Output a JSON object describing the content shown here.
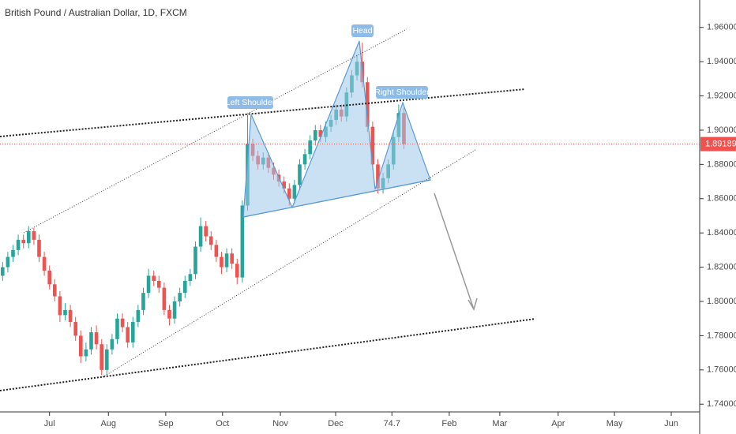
{
  "chart_data": {
    "type": "candlestick",
    "title": "British Pound / Australian Dollar, 1D, FXCM",
    "up_color": "#26a69a",
    "down_color": "#ef5350",
    "ohlc": [
      [
        1.815,
        1.823,
        1.812,
        1.82
      ],
      [
        1.82,
        1.829,
        1.817,
        1.826
      ],
      [
        1.826,
        1.833,
        1.823,
        1.83
      ],
      [
        1.83,
        1.839,
        1.827,
        1.836
      ],
      [
        1.836,
        1.839,
        1.831,
        1.834
      ],
      [
        1.834,
        1.844,
        1.831,
        1.841
      ],
      [
        1.841,
        1.843,
        1.833,
        1.836
      ],
      [
        1.836,
        1.839,
        1.823,
        1.826
      ],
      [
        1.826,
        1.829,
        1.815,
        1.818
      ],
      [
        1.818,
        1.821,
        1.807,
        1.81
      ],
      [
        1.81,
        1.813,
        1.8,
        1.803
      ],
      [
        1.803,
        1.806,
        1.788,
        1.792
      ],
      [
        1.792,
        1.799,
        1.789,
        1.795
      ],
      [
        1.795,
        1.798,
        1.785,
        1.788
      ],
      [
        1.788,
        1.791,
        1.777,
        1.78
      ],
      [
        1.78,
        1.783,
        1.764,
        1.768
      ],
      [
        1.768,
        1.776,
        1.765,
        1.772
      ],
      [
        1.772,
        1.785,
        1.769,
        1.782
      ],
      [
        1.782,
        1.786,
        1.772,
        1.775
      ],
      [
        1.775,
        1.778,
        1.757,
        1.76
      ],
      [
        1.76,
        1.775,
        1.757,
        1.772
      ],
      [
        1.772,
        1.781,
        1.769,
        1.778
      ],
      [
        1.778,
        1.793,
        1.775,
        1.79
      ],
      [
        1.79,
        1.793,
        1.782,
        1.785
      ],
      [
        1.785,
        1.788,
        1.773,
        1.776
      ],
      [
        1.776,
        1.791,
        1.773,
        1.788
      ],
      [
        1.788,
        1.798,
        1.785,
        1.795
      ],
      [
        1.795,
        1.808,
        1.792,
        1.805
      ],
      [
        1.805,
        1.819,
        1.802,
        1.815
      ],
      [
        1.815,
        1.818,
        1.809,
        1.812
      ],
      [
        1.812,
        1.815,
        1.805,
        1.808
      ],
      [
        1.808,
        1.811,
        1.792,
        1.795
      ],
      [
        1.795,
        1.798,
        1.786,
        1.79
      ],
      [
        1.79,
        1.803,
        1.787,
        1.8
      ],
      [
        1.8,
        1.808,
        1.797,
        1.805
      ],
      [
        1.805,
        1.815,
        1.802,
        1.812
      ],
      [
        1.812,
        1.819,
        1.809,
        1.816
      ],
      [
        1.816,
        1.835,
        1.813,
        1.832
      ],
      [
        1.832,
        1.849,
        1.829,
        1.844
      ],
      [
        1.844,
        1.847,
        1.835,
        1.838
      ],
      [
        1.838,
        1.841,
        1.83,
        1.833
      ],
      [
        1.833,
        1.836,
        1.823,
        1.826
      ],
      [
        1.826,
        1.829,
        1.816,
        1.82
      ],
      [
        1.82,
        1.831,
        1.817,
        1.828
      ],
      [
        1.828,
        1.831,
        1.819,
        1.822
      ],
      [
        1.822,
        1.825,
        1.81,
        1.814
      ],
      [
        1.814,
        1.859,
        1.811,
        1.856
      ],
      [
        1.856,
        1.909,
        1.853,
        1.892
      ],
      [
        1.892,
        1.895,
        1.882,
        1.885
      ],
      [
        1.885,
        1.888,
        1.877,
        1.88
      ],
      [
        1.88,
        1.887,
        1.877,
        1.884
      ],
      [
        1.884,
        1.887,
        1.875,
        1.878
      ],
      [
        1.878,
        1.881,
        1.871,
        1.874
      ],
      [
        1.874,
        1.877,
        1.867,
        1.87
      ],
      [
        1.87,
        1.873,
        1.863,
        1.866
      ],
      [
        1.866,
        1.869,
        1.856,
        1.86
      ],
      [
        1.86,
        1.871,
        1.857,
        1.868
      ],
      [
        1.868,
        1.883,
        1.865,
        1.88
      ],
      [
        1.88,
        1.889,
        1.877,
        1.886
      ],
      [
        1.886,
        1.897,
        1.883,
        1.894
      ],
      [
        1.894,
        1.903,
        1.891,
        1.9
      ],
      [
        1.9,
        1.903,
        1.893,
        1.896
      ],
      [
        1.896,
        1.905,
        1.893,
        1.902
      ],
      [
        1.902,
        1.909,
        1.899,
        1.906
      ],
      [
        1.906,
        1.915,
        1.903,
        1.912
      ],
      [
        1.912,
        1.915,
        1.905,
        1.908
      ],
      [
        1.908,
        1.925,
        1.905,
        1.922
      ],
      [
        1.922,
        1.935,
        1.919,
        1.932
      ],
      [
        1.932,
        1.944,
        1.929,
        1.94
      ],
      [
        1.94,
        1.951,
        1.925,
        1.928
      ],
      [
        1.928,
        1.931,
        1.899,
        1.902
      ],
      [
        1.902,
        1.905,
        1.877,
        1.88
      ],
      [
        1.88,
        1.883,
        1.863,
        1.866
      ],
      [
        1.866,
        1.875,
        1.863,
        1.872
      ],
      [
        1.872,
        1.883,
        1.869,
        1.88
      ],
      [
        1.88,
        1.899,
        1.877,
        1.896
      ],
      [
        1.896,
        1.915,
        1.893,
        1.91
      ],
      [
        1.91,
        1.913,
        1.889,
        1.8919
      ]
    ],
    "last_price": 1.89189,
    "last_price_color": "#ef5350",
    "xlim": [
      -0.5,
      133.6
    ],
    "xticks": [
      {
        "value": 9.0,
        "label": "Jul"
      },
      {
        "value": 20.3,
        "label": "Aug"
      },
      {
        "value": 31.3,
        "label": "Sep"
      },
      {
        "value": 42.2,
        "label": "Oct"
      },
      {
        "value": 53.3,
        "label": "Nov"
      },
      {
        "value": 63.9,
        "label": "Dec"
      },
      74.7,
      {
        "value": 85.7,
        "label": "Feb"
      },
      {
        "value": 95.4,
        "label": "Mar"
      },
      {
        "value": 106.6,
        "label": "Apr"
      },
      {
        "value": 117.4,
        "label": "May"
      },
      {
        "value": 128.3,
        "label": "Jun"
      }
    ],
    "ylim": [
      1.7355,
      1.976
    ],
    "yticks": [
      {
        "value": 1.74,
        "label": "1.74000"
      },
      {
        "value": 1.76,
        "label": "1.76000"
      },
      {
        "value": 1.78,
        "label": "1.78000"
      },
      {
        "value": 1.8,
        "label": "1.80000"
      },
      {
        "value": 1.82,
        "label": "1.82000"
      },
      {
        "value": 1.84,
        "label": "1.84000"
      },
      {
        "value": 1.86,
        "label": "1.86000"
      },
      {
        "value": 1.88,
        "label": "1.88000"
      },
      {
        "value": 1.9,
        "label": "1.90000"
      },
      {
        "value": 1.92,
        "label": "1.92000"
      },
      {
        "value": 1.94,
        "label": "1.94000"
      },
      {
        "value": 1.96,
        "label": "1.96000"
      }
    ],
    "annotations": [
      "Left Shoulder",
      "Head",
      "Right Shoulder"
    ]
  }
}
